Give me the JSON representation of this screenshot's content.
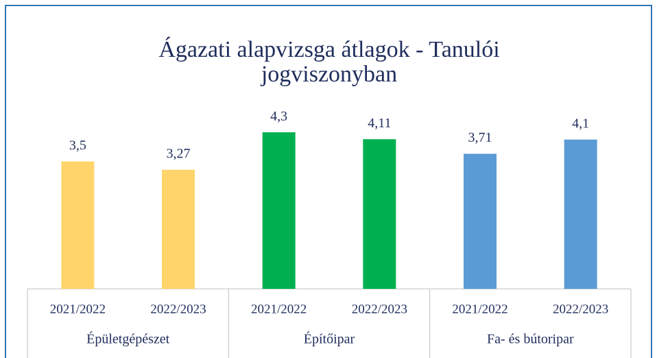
{
  "chart_data": {
    "type": "bar",
    "title": "Ágazati alapvizsga átlagok - Tanulói jogviszonyban",
    "groups": [
      {
        "name": "Épületgépészet",
        "color": "#FFD56B",
        "categories": [
          "2021/2022",
          "2022/2023"
        ],
        "values": [
          3.5,
          3.27
        ],
        "value_labels": [
          "3,5",
          "3,27"
        ]
      },
      {
        "name": "Építőipar",
        "color": "#00B050",
        "categories": [
          "2021/2022",
          "2022/2023"
        ],
        "values": [
          4.3,
          4.11
        ],
        "value_labels": [
          "4,3",
          "4,11"
        ]
      },
      {
        "name": "Fa- és bútoripar",
        "color": "#5B9BD5",
        "categories": [
          "2021/2022",
          "2022/2023"
        ],
        "values": [
          3.71,
          4.1
        ],
        "value_labels": [
          "3,71",
          "4,1"
        ]
      }
    ]
  }
}
